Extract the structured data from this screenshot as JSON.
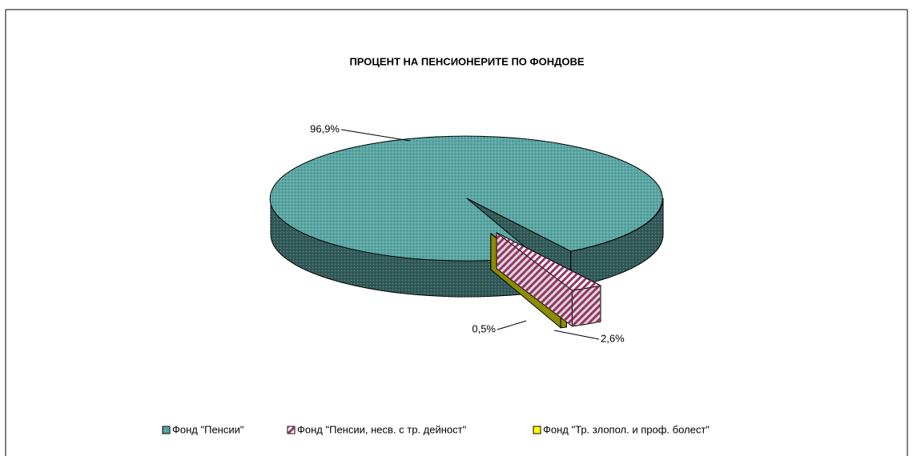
{
  "chart_data": {
    "type": "pie",
    "title": "ПРОЦЕНТ НА ПЕНСИОНЕРИТЕ ПО ФОНДОВЕ",
    "categories": [
      "Фонд \"Пенсии\"",
      "Фонд \"Пенсии, несв. с тр. дейност\"",
      "Фонд \"Тр. злопол. и проф. болест\""
    ],
    "values": [
      96.9,
      2.6,
      0.5
    ],
    "value_labels": [
      "96,9%",
      "2,6%",
      "0,5%"
    ],
    "colors": [
      "#5aa6a3",
      "#ffffff",
      "#ffff00"
    ],
    "legend": "bottom"
  }
}
